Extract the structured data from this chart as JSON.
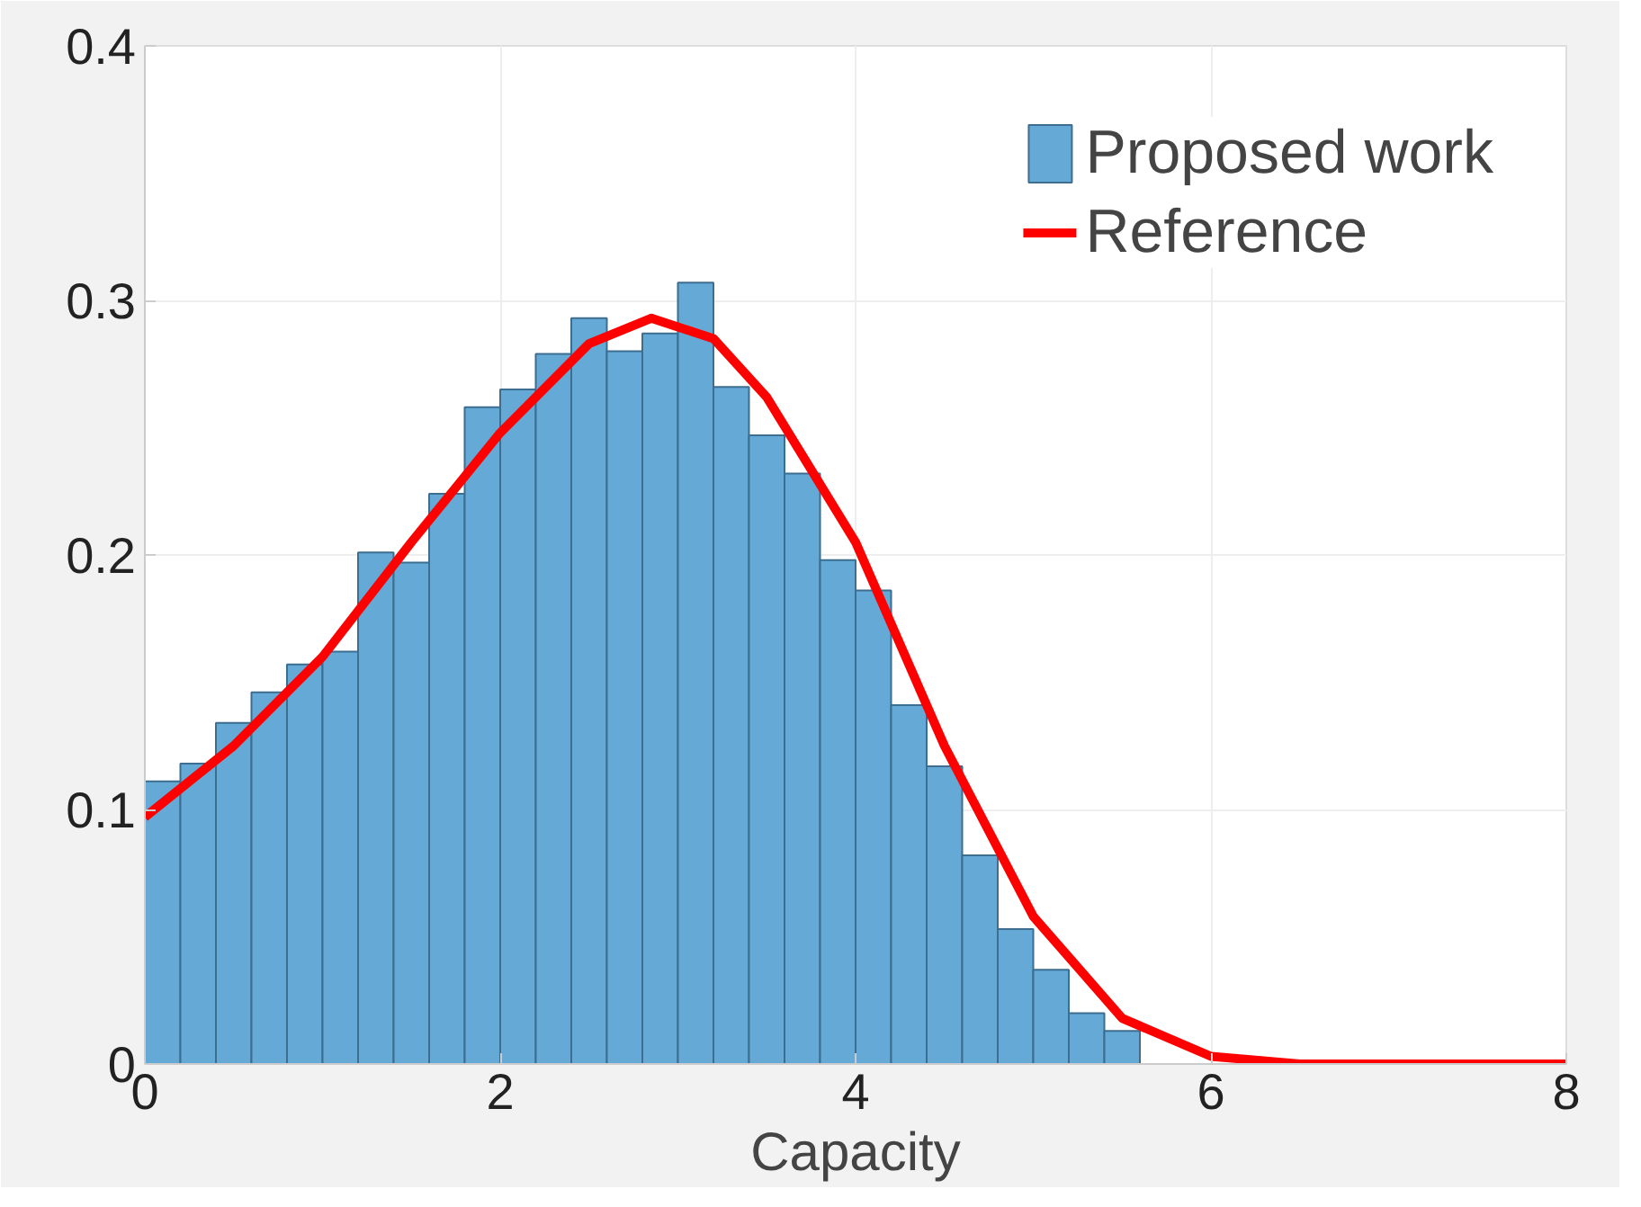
{
  "chart_data": {
    "type": "histogram",
    "xlabel": "Capacity",
    "xlim": [
      0,
      8
    ],
    "ylim": [
      0,
      0.4
    ],
    "xticks": [
      0,
      2,
      4,
      6,
      8
    ],
    "yticks": [
      0,
      0.1,
      0.2,
      0.3,
      0.4
    ],
    "grid": true,
    "legend": "top right",
    "bins": [
      0,
      0.2,
      0.4,
      0.6,
      0.8,
      1.0,
      1.2,
      1.4,
      1.6,
      1.8,
      2.0,
      2.2,
      2.4,
      2.6,
      2.8,
      3.0,
      3.2,
      3.4,
      3.6,
      3.8,
      4.0,
      4.2,
      4.4,
      4.6,
      4.8,
      5.0,
      5.2,
      5.4,
      5.6
    ],
    "series": [
      {
        "name": "Proposed work",
        "color": "#65a9d7",
        "values": [
          0.111,
          0.118,
          0.134,
          0.146,
          0.157,
          0.162,
          0.201,
          0.197,
          0.224,
          0.258,
          0.265,
          0.279,
          0.293,
          0.28,
          0.287,
          0.307,
          0.266,
          0.247,
          0.232,
          0.198,
          0.186,
          0.141,
          0.117,
          0.082,
          0.053,
          0.037,
          0.02,
          0.013
        ]
      },
      {
        "name": "Reference",
        "type": "line",
        "color": "#ff0000",
        "x": [
          0,
          0.5,
          1,
          1.5,
          2,
          2.5,
          2.85,
          3.2,
          3.5,
          4,
          4.5,
          5,
          5.5,
          6,
          6.5,
          7,
          8
        ],
        "values": [
          0.097,
          0.125,
          0.16,
          0.205,
          0.248,
          0.283,
          0.293,
          0.285,
          0.262,
          0.205,
          0.125,
          0.058,
          0.018,
          0.003,
          0,
          0,
          0
        ]
      }
    ]
  }
}
